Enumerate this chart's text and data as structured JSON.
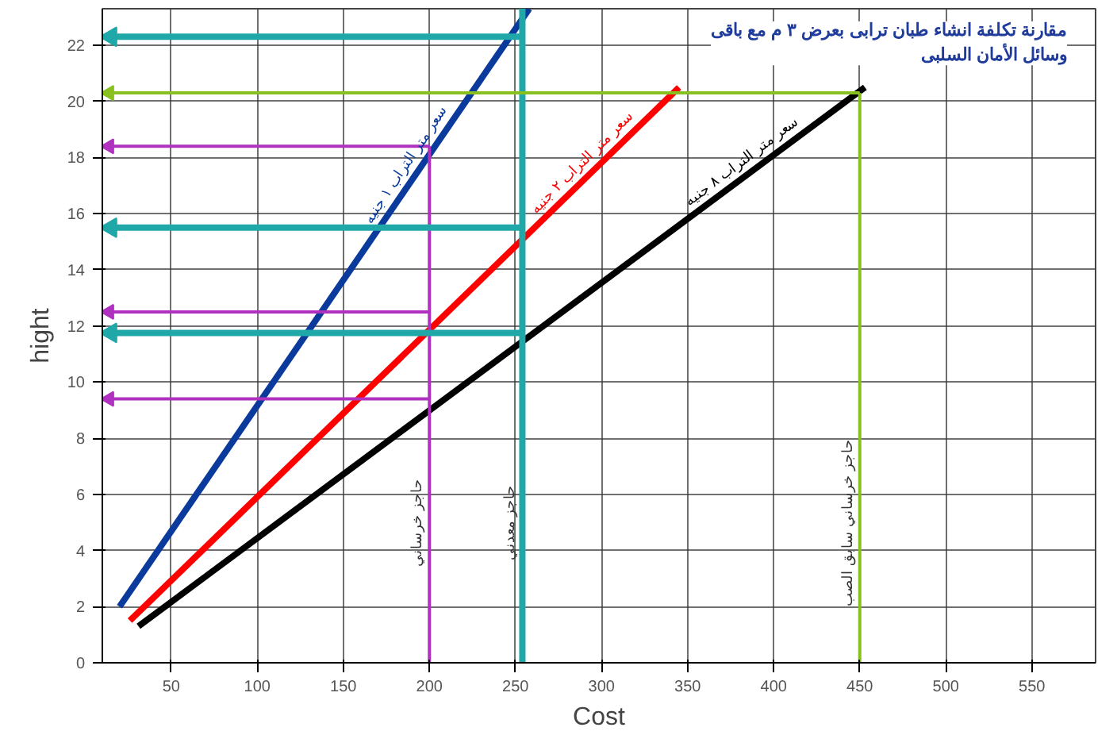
{
  "chart_data": {
    "type": "line",
    "title": "مقارنة تكلفة انشاء طبان ترابى بعرض ٣ م مع باقى\nوسائل الأمان السلبى",
    "xlabel": "Cost",
    "ylabel": "hight",
    "xlim": [
      10,
      587
    ],
    "ylim": [
      0,
      23.3
    ],
    "xticks": [
      50,
      100,
      150,
      200,
      250,
      300,
      350,
      400,
      450,
      500,
      550
    ],
    "yticks": [
      0,
      2,
      4,
      6,
      8,
      10,
      12,
      14,
      16,
      18,
      20,
      22
    ],
    "grid": true,
    "series": [
      {
        "name": "سعر متر التراب ١ جنيه",
        "color": "#0a3a9c",
        "x": [
          20,
          258
        ],
        "values": [
          2,
          23.3
        ]
      },
      {
        "name": "سعر متر التراب ٢ جنيه",
        "color": "#ff0000",
        "x": [
          26,
          345
        ],
        "values": [
          1.5,
          20.5
        ]
      },
      {
        "name": "سعر متر التراب ٨ جنيه",
        "color": "#000000",
        "x": [
          31,
          453
        ],
        "values": [
          1.3,
          20.5
        ]
      },
      {
        "name": "حاجز خرساني",
        "color": "#b030c0",
        "x": [
          200,
          200
        ],
        "values": [
          0,
          18.4
        ]
      },
      {
        "name": "حاجز معدني",
        "color": "#20a8a8",
        "x": [
          254,
          254
        ],
        "values": [
          0,
          23.3
        ]
      },
      {
        "name": "حاجز خرساني سابق الصب",
        "color": "#88c020",
        "x": [
          450,
          450
        ],
        "values": [
          0,
          20.3
        ]
      },
      {
        "color": "#20a8a8",
        "x": [
          254,
          15
        ],
        "values": [
          22.3,
          22.3
        ],
        "marker": "triangle"
      },
      {
        "color": "#20a8a8",
        "x": [
          254,
          15
        ],
        "values": [
          15.5,
          15.5
        ],
        "marker": "triangle"
      },
      {
        "color": "#20a8a8",
        "x": [
          254,
          15
        ],
        "values": [
          11.75,
          11.75
        ],
        "marker": "triangle"
      },
      {
        "color": "#88c020",
        "x": [
          450,
          14
        ],
        "values": [
          20.3,
          20.3
        ],
        "marker": "triangle"
      },
      {
        "color": "#b030c0",
        "x": [
          200,
          14
        ],
        "values": [
          18.4,
          18.4
        ],
        "marker": "triangle"
      },
      {
        "color": "#b030c0",
        "x": [
          200,
          14
        ],
        "values": [
          12.5,
          12.5
        ],
        "marker": "triangle"
      },
      {
        "color": "#b030c0",
        "x": [
          200,
          14
        ],
        "values": [
          9.4,
          9.4
        ],
        "marker": "triangle"
      }
    ]
  }
}
